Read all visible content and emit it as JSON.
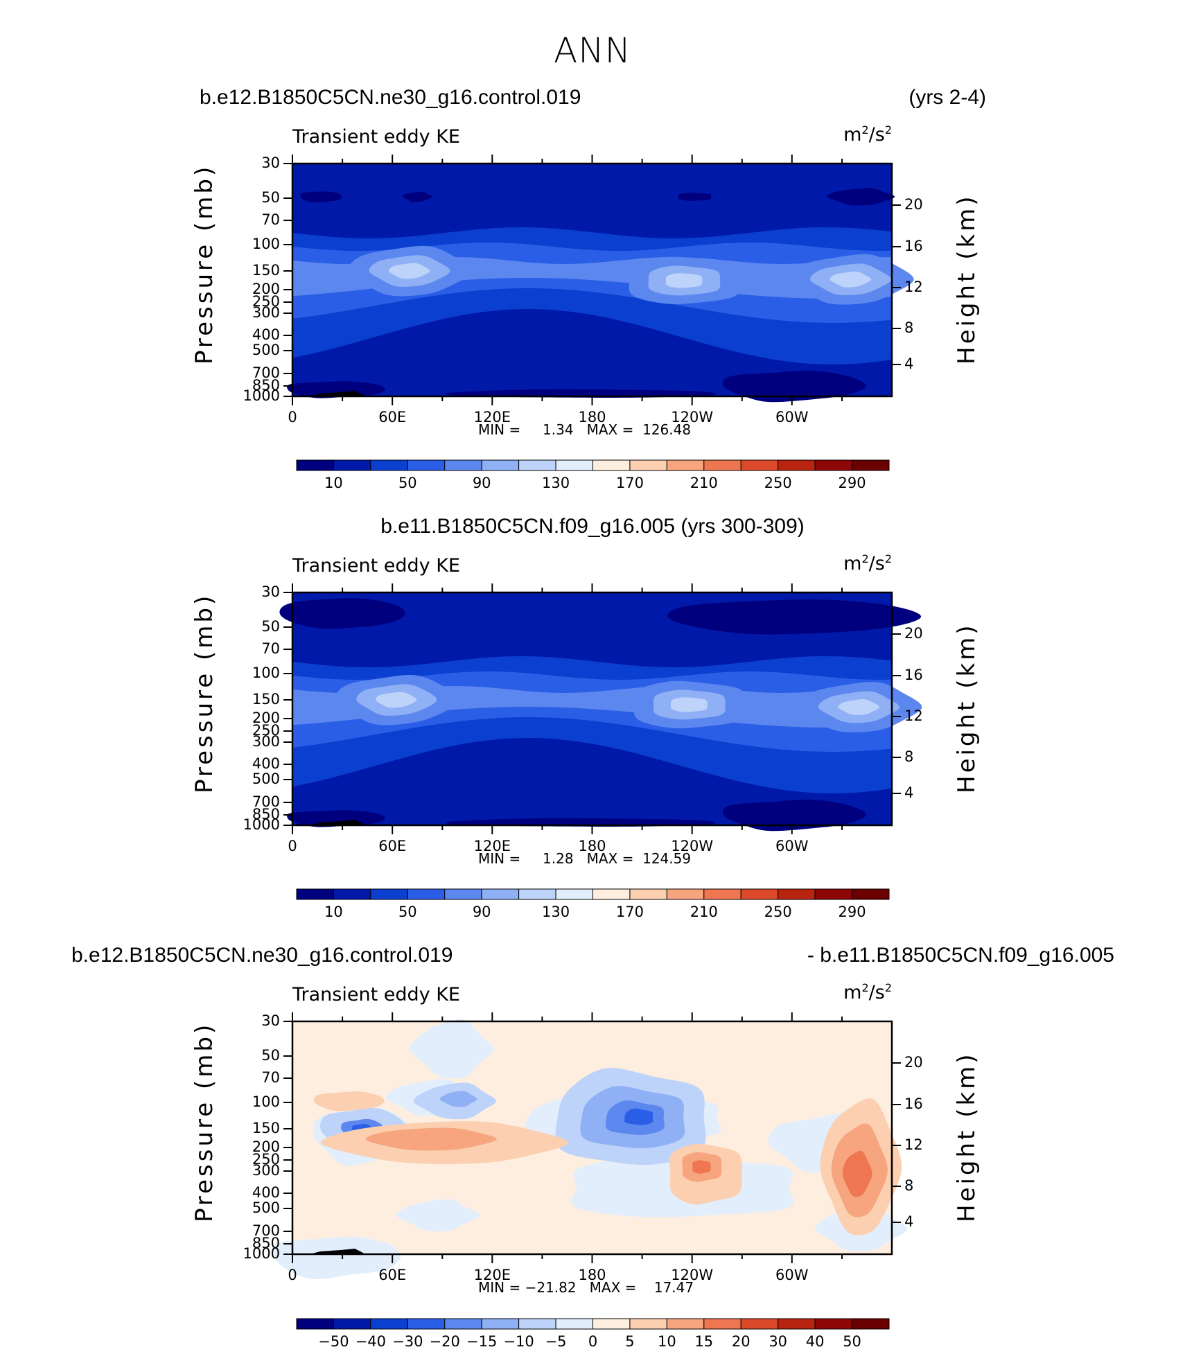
{
  "figure_title": "ANN",
  "panels": [
    {
      "title_left": "b.e12.B1850C5CN.ne30_g16.control.019",
      "title_right": "(yrs 2-4)",
      "title_center": "",
      "label_left": "Transient eddy KE",
      "units_base": "m",
      "units_sup1": "2",
      "units_mid": "/s",
      "units_sup2": "2",
      "min_text": "MIN =     1.34   MAX =  126.48",
      "colorbar_labels": [
        "10",
        "50",
        "90",
        "130",
        "170",
        "210",
        "250",
        "290"
      ]
    },
    {
      "title_left": "",
      "title_right": "",
      "title_center": "b.e11.B1850C5CN.f09_g16.005 (yrs 300-309)",
      "label_left": "Transient eddy KE",
      "units_base": "m",
      "units_sup1": "2",
      "units_mid": "/s",
      "units_sup2": "2",
      "min_text": "MIN =     1.28   MAX =  124.59",
      "colorbar_labels": [
        "10",
        "50",
        "90",
        "130",
        "170",
        "210",
        "250",
        "290"
      ]
    },
    {
      "title_left": "b.e12.B1850C5CN.ne30_g16.control.019",
      "title_right": "- b.e11.B1850C5CN.f09_g16.005",
      "title_center": "",
      "label_left": "Transient eddy KE",
      "units_base": "m",
      "units_sup1": "2",
      "units_mid": "/s",
      "units_sup2": "2",
      "min_text": "MIN = −21.82   MAX =    17.47",
      "colorbar_labels": [
        "−50",
        "−40",
        "−30",
        "−20",
        "−15",
        "−10",
        "−5",
        "0",
        "5",
        "10",
        "15",
        "20",
        "30",
        "40",
        "50"
      ]
    }
  ],
  "chart_data": [
    {
      "type": "heatmap",
      "title": "Transient eddy KE",
      "units": "m2/s2",
      "x_ticks": [
        "0",
        "60E",
        "120E",
        "180",
        "120W",
        "60W"
      ],
      "y_left_label": "Pressure  (mb)",
      "y_left_ticks": [
        "30",
        "50",
        "70",
        "100",
        "150",
        "200",
        "250",
        "300",
        "400",
        "500",
        "700",
        "850",
        "1000"
      ],
      "y_right_label": "Height  (km)",
      "y_right_ticks": [
        "20",
        "16",
        "12",
        "8",
        "4"
      ],
      "min": 1.34,
      "max": 126.48,
      "contour_levels": [
        10,
        30,
        50,
        70,
        90,
        110,
        130,
        150,
        170,
        190,
        210,
        230,
        250,
        270,
        290
      ],
      "colors": [
        "#00007f",
        "#0019a8",
        "#0a3fd0",
        "#2a5ee6",
        "#5c87ee",
        "#8fb0f4",
        "#bdd3f9",
        "#e3eefc",
        "#fdeee0",
        "#fbcfb0",
        "#f6a57e",
        "#ee7752",
        "#dc4a2b",
        "#b8240f",
        "#8f0606",
        "#6a0000"
      ],
      "features": [
        {
          "lon": 70,
          "p": 150,
          "value": 110
        },
        {
          "lon": 235,
          "p": 190,
          "value": 110
        },
        {
          "lon": 335,
          "p": 185,
          "value": 115
        }
      ]
    },
    {
      "type": "heatmap",
      "title": "Transient eddy KE",
      "units": "m2/s2",
      "x_ticks": [
        "0",
        "60E",
        "120E",
        "180",
        "120W",
        "60W"
      ],
      "y_left_label": "Pressure  (mb)",
      "y_left_ticks": [
        "30",
        "50",
        "70",
        "100",
        "150",
        "200",
        "250",
        "300",
        "400",
        "500",
        "700",
        "850",
        "1000"
      ],
      "y_right_label": "Height  (km)",
      "y_right_ticks": [
        "20",
        "16",
        "12",
        "8",
        "4"
      ],
      "min": 1.28,
      "max": 124.59,
      "contour_levels": [
        10,
        30,
        50,
        70,
        90,
        110,
        130,
        150,
        170,
        190,
        210,
        230,
        250,
        270,
        290
      ],
      "colors": [
        "#00007f",
        "#0019a8",
        "#0a3fd0",
        "#2a5ee6",
        "#5c87ee",
        "#8fb0f4",
        "#bdd3f9",
        "#e3eefc",
        "#fdeee0",
        "#fbcfb0",
        "#f6a57e",
        "#ee7752",
        "#dc4a2b",
        "#b8240f",
        "#8f0606",
        "#6a0000"
      ],
      "features": [
        {
          "lon": 62,
          "p": 150,
          "value": 110
        },
        {
          "lon": 238,
          "p": 170,
          "value": 115
        },
        {
          "lon": 340,
          "p": 180,
          "value": 100
        }
      ]
    },
    {
      "type": "heatmap",
      "title": "Transient eddy KE",
      "units": "m2/s2",
      "x_ticks": [
        "0",
        "60E",
        "120E",
        "180",
        "120W",
        "60W"
      ],
      "y_left_label": "Pressure  (mb)",
      "y_left_ticks": [
        "30",
        "50",
        "70",
        "100",
        "150",
        "200",
        "250",
        "300",
        "400",
        "500",
        "700",
        "850",
        "1000"
      ],
      "y_right_label": "Height  (km)",
      "y_right_ticks": [
        "20",
        "16",
        "12",
        "8",
        "4"
      ],
      "min": -21.82,
      "max": 17.47,
      "contour_levels": [
        -50,
        -40,
        -30,
        -20,
        -15,
        -10,
        -5,
        0,
        5,
        10,
        15,
        20,
        30,
        40,
        50
      ],
      "colors": [
        "#00007f",
        "#0019a8",
        "#0a3fd0",
        "#2a5ee6",
        "#5c87ee",
        "#8fb0f4",
        "#bdd3f9",
        "#e3eefc",
        "#fdeee0",
        "#fbcfb0",
        "#f6a57e",
        "#ee7752",
        "#dc4a2b",
        "#b8240f",
        "#8f0606",
        "#6a0000"
      ],
      "features": [
        {
          "lon": 210,
          "p": 150,
          "value": -21.82
        },
        {
          "lon": 330,
          "p": 260,
          "value": 17.47
        },
        {
          "lon": 250,
          "p": 270,
          "value": 10
        },
        {
          "lon": 100,
          "p": 150,
          "value": 8
        }
      ]
    }
  ]
}
